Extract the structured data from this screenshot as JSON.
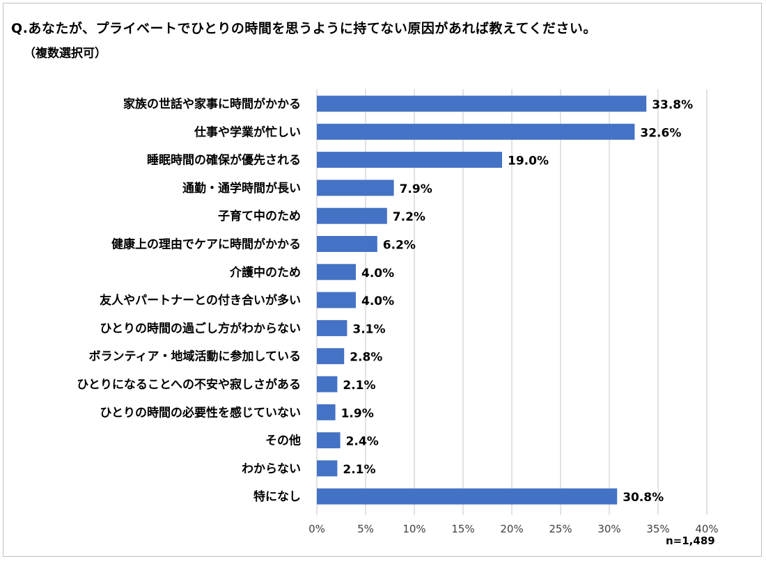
{
  "title": "Q.あなたが、プライベートでひとりの時間を思うように持てない原因があれば教えてください。",
  "subtitle": "（複数選択可）",
  "note": "n=1,489",
  "colors": {
    "bar": "#4472c4",
    "grid": "#d9d9d9"
  },
  "chart_data": {
    "type": "bar",
    "orientation": "horizontal",
    "categories": [
      "家族の世話や家事に時間がかかる",
      "仕事や学業が忙しい",
      "睡眠時間の確保が優先される",
      "通勤・通学時間が長い",
      "子育て中のため",
      "健康上の理由でケアに時間がかかる",
      "介護中のため",
      "友人やパートナーとの付き合いが多い",
      "ひとりの時間の過ごし方がわからない",
      "ボランティア・地域活動に参加している",
      "ひとりになることへの不安や寂しさがある",
      "ひとりの時間の必要性を感じていない",
      "その他",
      "わからない",
      "特になし"
    ],
    "values": [
      33.8,
      32.6,
      19.0,
      7.9,
      7.2,
      6.2,
      4.0,
      4.0,
      3.1,
      2.8,
      2.1,
      1.9,
      2.4,
      2.1,
      30.8
    ],
    "value_labels": [
      "33.8%",
      "32.6%",
      "19.0%",
      "7.9%",
      "7.2%",
      "6.2%",
      "4.0%",
      "4.0%",
      "3.1%",
      "2.8%",
      "2.1%",
      "1.9%",
      "2.4%",
      "2.1%",
      "30.8%"
    ],
    "xlim": [
      0,
      40
    ],
    "xticks": [
      0,
      5,
      10,
      15,
      20,
      25,
      30,
      35,
      40
    ],
    "xtick_labels": [
      "0%",
      "5%",
      "10%",
      "15%",
      "20%",
      "25%",
      "30%",
      "35%",
      "40%"
    ],
    "grid": true,
    "legend": "none"
  }
}
